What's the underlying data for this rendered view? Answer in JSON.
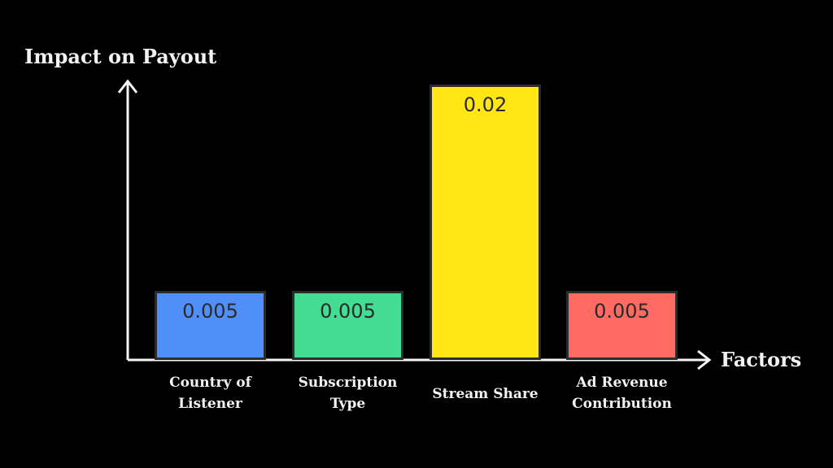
{
  "chart_data": {
    "type": "bar",
    "title": "",
    "xlabel": "Factors",
    "ylabel": "Impact on Payout",
    "categories": [
      "Country of Listener",
      "Subscription Type",
      "Stream Share",
      "Ad Revenue Contribution"
    ],
    "category_lines": [
      [
        "Country of",
        "Listener"
      ],
      [
        "Subscription",
        "Type"
      ],
      [
        "Stream Share"
      ],
      [
        "Ad Revenue",
        "Contribution"
      ]
    ],
    "values": [
      0.005,
      0.005,
      0.02,
      0.005
    ],
    "value_labels": [
      "0.005",
      "0.005",
      "0.02",
      "0.005"
    ],
    "colors": [
      "#4f8ff7",
      "#44db93",
      "#ffe614",
      "#ff6a63"
    ],
    "ylim": [
      0,
      0.0223
    ],
    "grid": false,
    "legend": null,
    "axes_style": "arrows",
    "background": "#000000"
  },
  "axes": {
    "y_title": "Impact on Payout",
    "x_title": "Factors"
  }
}
